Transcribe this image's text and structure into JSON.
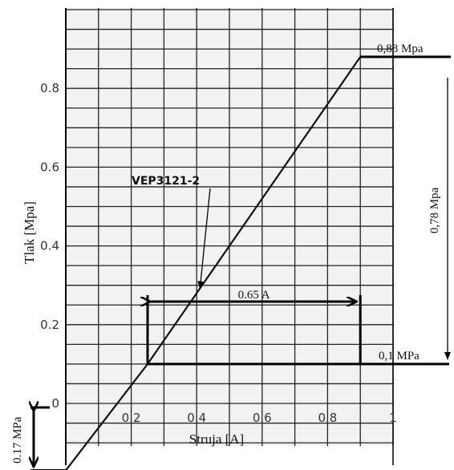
{
  "chart_data": {
    "type": "line",
    "xlabel": "Struja [A]",
    "ylabel": "Tlak [Mpa]",
    "xlim": [
      0,
      1
    ],
    "ylim": [
      -0.17,
      1.0
    ],
    "x_ticks": [
      0.2,
      0.4,
      0.6,
      0.8,
      1
    ],
    "x_tick_labels": [
      "0.2",
      "0.4",
      "0.6",
      "0.8",
      "1"
    ],
    "y_ticks": [
      0,
      0.2,
      0.4,
      0.6,
      0.8
    ],
    "y_tick_labels": [
      "0",
      "0.2",
      "0.4",
      "0.6",
      "0.8"
    ],
    "grid": true,
    "series": [
      {
        "name": "VEP3121-2",
        "x": [
          0.0,
          0.25,
          0.9
        ],
        "y": [
          -0.17,
          0.1,
          0.88
        ]
      }
    ],
    "annotations": {
      "max_pressure": "0,88 Mpa",
      "pressure_span": "0,78 Mpa",
      "min_pressure": "0,1 MPa",
      "current_span": "0.65 A",
      "offset": "0.17 MPa"
    },
    "reference_points": {
      "current_start": 0.25,
      "current_end": 0.9,
      "pressure_low": 0.1,
      "pressure_high": 0.88,
      "pressure_offset": -0.17
    }
  }
}
